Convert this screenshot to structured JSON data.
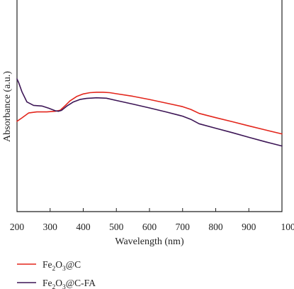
{
  "chart_data": {
    "type": "line",
    "title": "",
    "xlabel": "Wavelength (nm)",
    "ylabel": "Absorbance (a.u.)",
    "xlim": [
      200,
      1000
    ],
    "ylim": [
      0,
      1
    ],
    "x_ticks": [
      "200",
      "300",
      "400",
      "500",
      "600",
      "700",
      "800",
      "900",
      "1000"
    ],
    "y_ticks": [],
    "legend_placement": "bottom-left",
    "series": [
      {
        "name": "Fe2O3@C",
        "legend_parts": [
          "Fe",
          "2",
          "O",
          "3",
          "@C"
        ],
        "color": "#e3261c",
        "x": [
          200,
          215,
          235,
          260,
          290,
          315,
          330,
          345,
          360,
          380,
          400,
          420,
          440,
          460,
          480,
          500,
          550,
          600,
          650,
          700,
          725,
          750,
          800,
          850,
          900,
          950,
          1000
        ],
        "y": [
          0.427,
          0.443,
          0.466,
          0.471,
          0.471,
          0.474,
          0.479,
          0.5,
          0.523,
          0.544,
          0.556,
          0.562,
          0.564,
          0.564,
          0.562,
          0.557,
          0.545,
          0.53,
          0.513,
          0.496,
          0.483,
          0.464,
          0.444,
          0.425,
          0.405,
          0.386,
          0.367
        ]
      },
      {
        "name": "Fe2O3@C-FA",
        "legend_parts": [
          "Fe",
          "2",
          "O",
          "3",
          "@C-FA"
        ],
        "color": "#3d1656",
        "x": [
          200,
          205,
          215,
          230,
          250,
          275,
          295,
          315,
          325,
          335,
          350,
          370,
          390,
          410,
          440,
          470,
          500,
          550,
          600,
          650,
          700,
          725,
          750,
          800,
          850,
          900,
          950,
          1000
        ],
        "y": [
          0.627,
          0.61,
          0.566,
          0.518,
          0.502,
          0.499,
          0.489,
          0.477,
          0.474,
          0.479,
          0.498,
          0.518,
          0.53,
          0.535,
          0.538,
          0.536,
          0.525,
          0.508,
          0.49,
          0.471,
          0.451,
          0.436,
          0.415,
          0.394,
          0.373,
          0.351,
          0.33,
          0.31
        ]
      }
    ]
  }
}
